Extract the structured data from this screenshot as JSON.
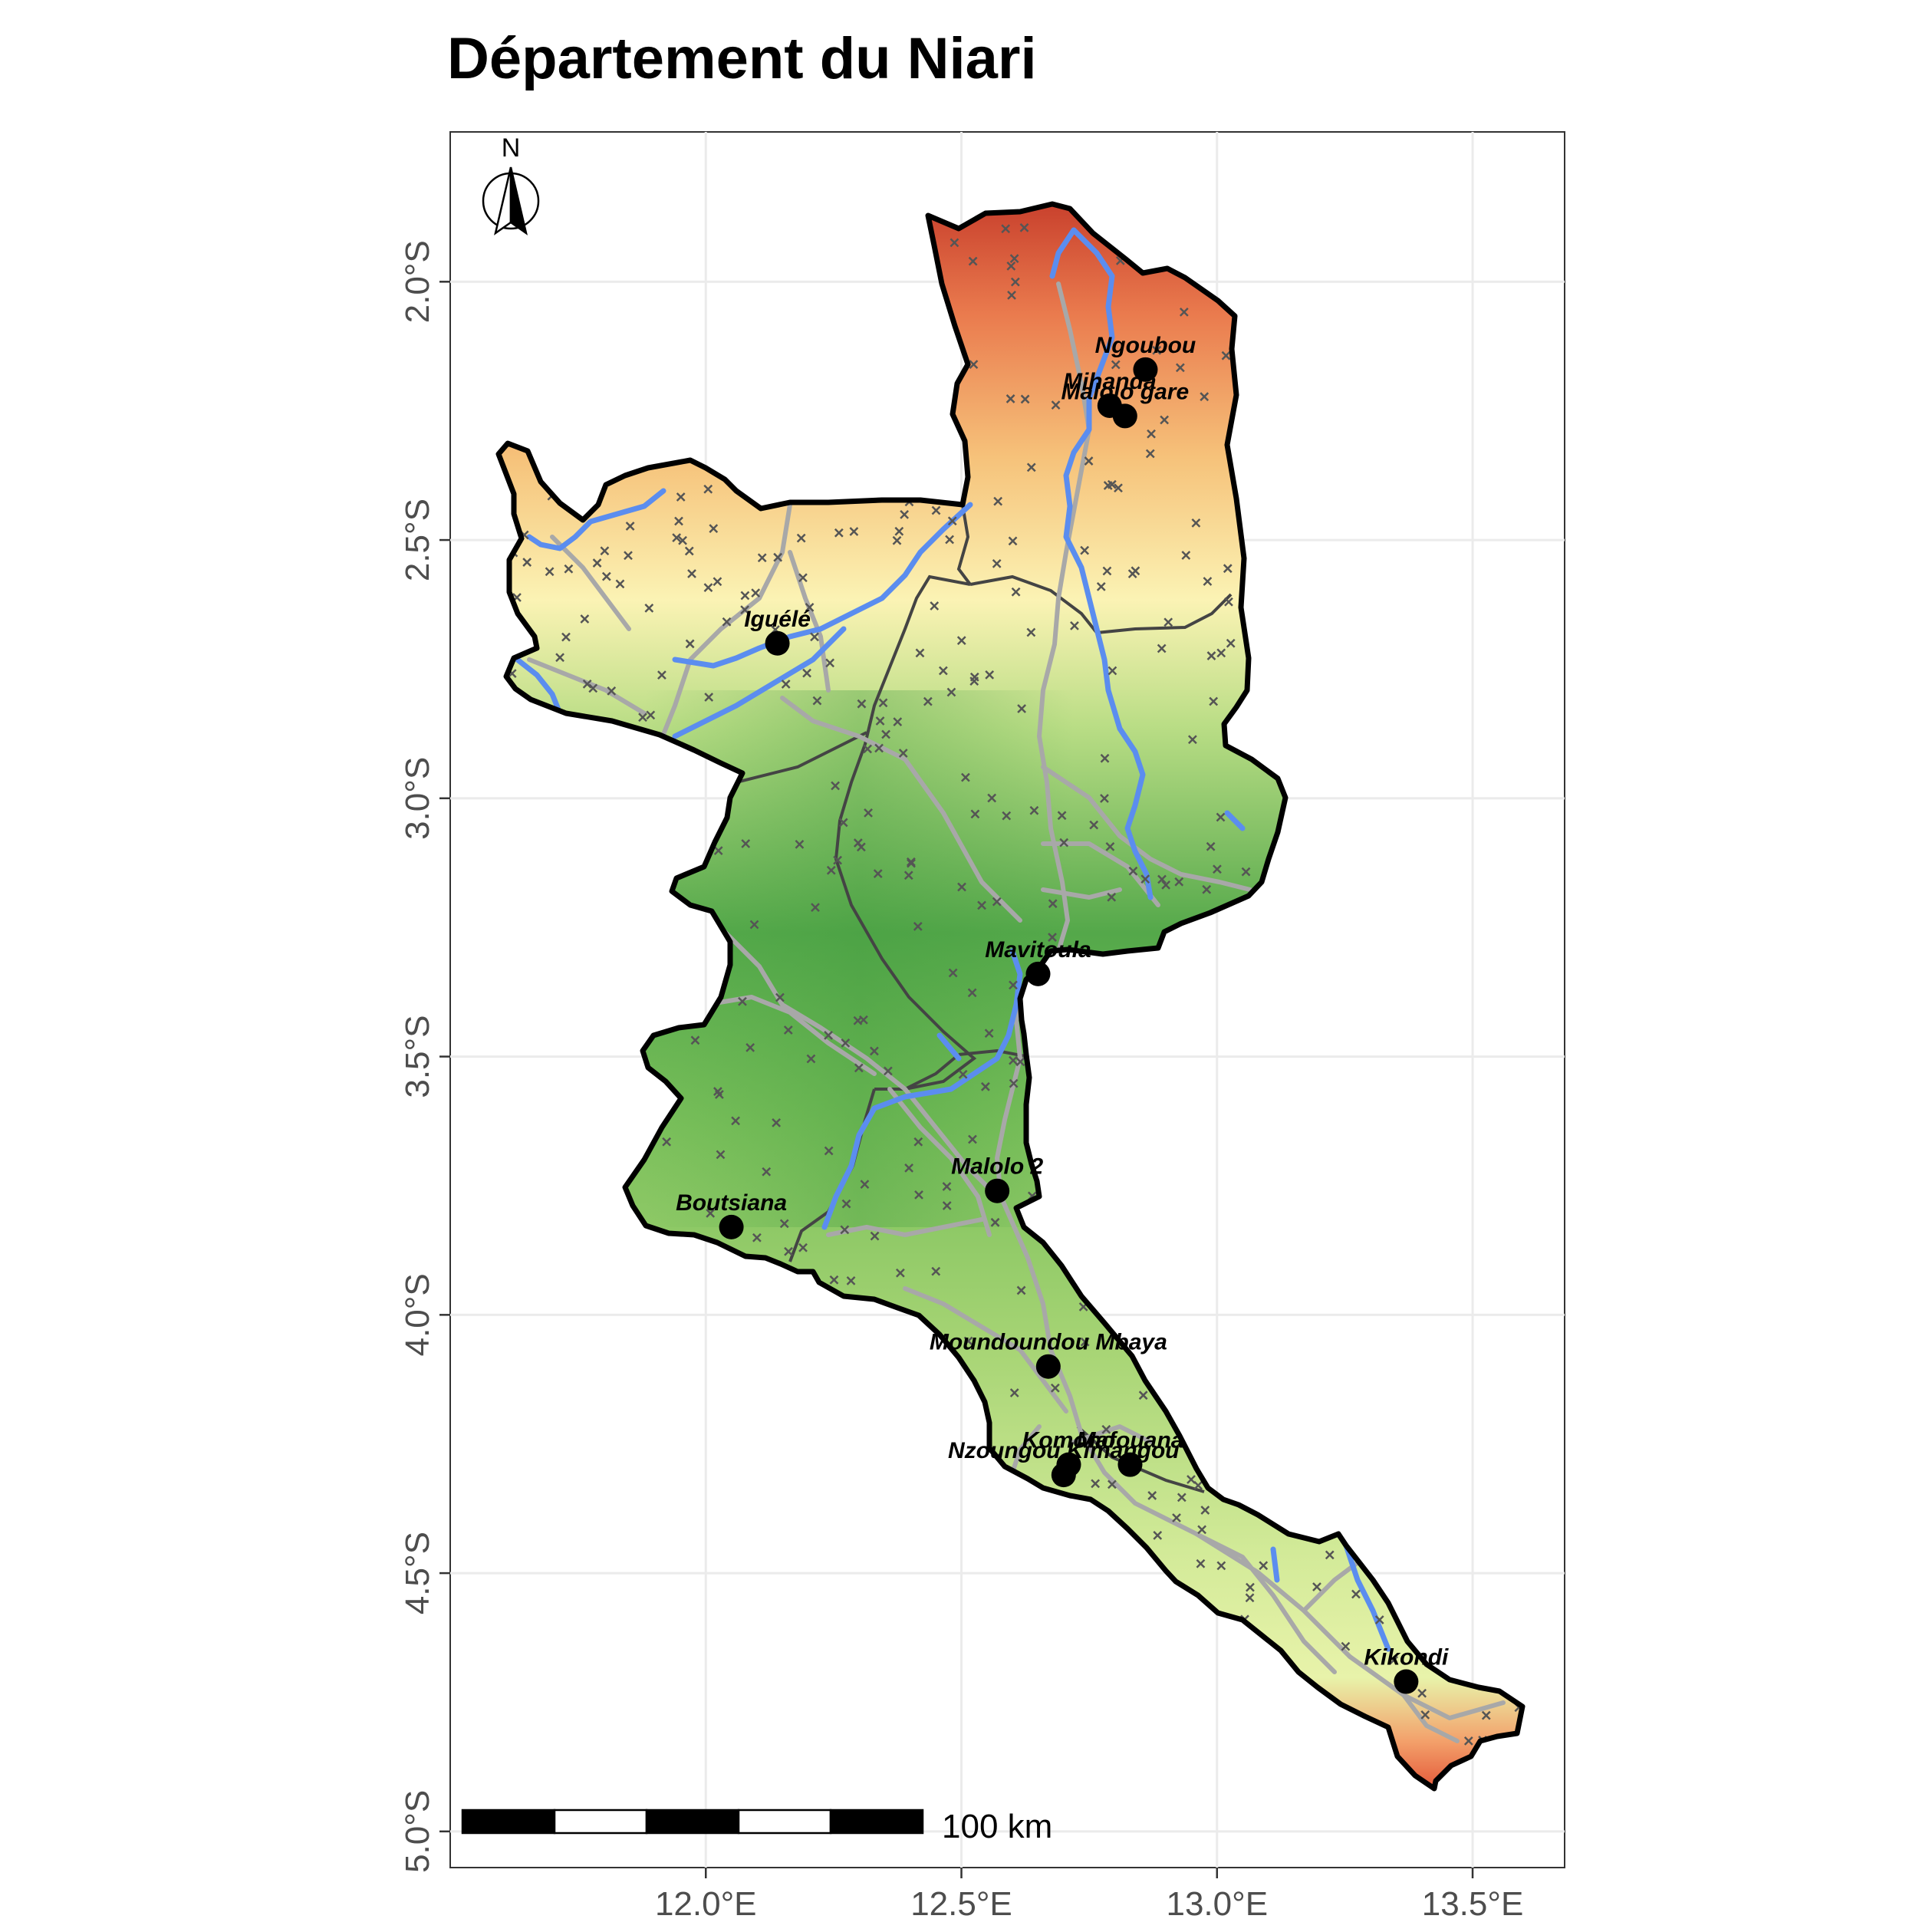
{
  "map": {
    "title": "Département du Niari",
    "x_axis": {
      "ticks": [
        {
          "value": 12.0,
          "label": "12.0°E"
        },
        {
          "value": 12.5,
          "label": "12.5°E"
        },
        {
          "value": 13.0,
          "label": "13.0°E"
        },
        {
          "value": 13.5,
          "label": "13.5°E"
        }
      ],
      "range": [
        11.5,
        13.68
      ]
    },
    "y_axis": {
      "ticks": [
        {
          "value": -2.0,
          "label": "2.0°S"
        },
        {
          "value": -2.5,
          "label": "2.5°S"
        },
        {
          "value": -3.0,
          "label": "3.0°S"
        },
        {
          "value": -3.5,
          "label": "3.5°S"
        },
        {
          "value": -4.0,
          "label": "4.0°S"
        },
        {
          "value": -4.5,
          "label": "4.5°S"
        },
        {
          "value": -5.0,
          "label": "5.0°S"
        }
      ],
      "range": [
        -5.07,
        -1.71
      ]
    },
    "grid": true,
    "north_arrow": {
      "label": "N",
      "icon": "north-arrow-icon",
      "placement": "top-left"
    },
    "scale_bar": {
      "label": "100 km",
      "segments": 5,
      "placement": "bottom-left"
    },
    "colors": {
      "department_border": "#000000",
      "district_border": "#444444",
      "rivers": "#5b8def",
      "roads": "#a8a8a8",
      "localities": "#555555",
      "elevation_low": "#3c9a3c",
      "elevation_mid": "#fbf6b0",
      "elevation_high": "#d6604d"
    },
    "towns": [
      {
        "name": "Ngoubou",
        "lon": 12.86,
        "lat": -2.17
      },
      {
        "name": "Mihanda",
        "lon": 12.79,
        "lat": -2.24
      },
      {
        "name": "Malolo gare",
        "lon": 12.82,
        "lat": -2.26
      },
      {
        "name": "Iguélé",
        "lon": 12.14,
        "lat": -2.7
      },
      {
        "name": "Mavitoula",
        "lon": 12.65,
        "lat": -3.34
      },
      {
        "name": "Malolo 2",
        "lon": 12.57,
        "lat": -3.76
      },
      {
        "name": "Boutsiana",
        "lon": 12.05,
        "lat": -3.83
      },
      {
        "name": "Moundoundou Mbaya",
        "lon": 12.67,
        "lat": -4.1
      },
      {
        "name": "Komono",
        "lon": 12.71,
        "lat": -4.29
      },
      {
        "name": "Mafouana",
        "lon": 12.83,
        "lat": -4.29
      },
      {
        "name": "Nzoungou Kimangou",
        "lon": 12.7,
        "lat": -4.31
      },
      {
        "name": "Kikondi",
        "lon": 13.37,
        "lat": -4.71
      }
    ]
  }
}
